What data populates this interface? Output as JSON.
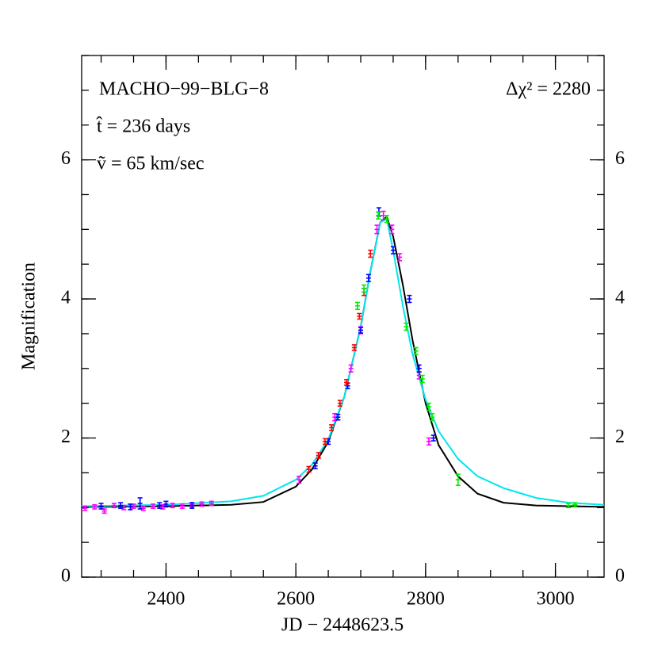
{
  "chart_data": {
    "type": "lightcurve",
    "xlabel": "JD − 2448623.5",
    "ylabel": "Magnification",
    "annotations": [
      "MACHO−99−BLG−8",
      "Δχ² = 2280",
      "t̂ = 236 days",
      "ṽ = 65 km/sec"
    ],
    "xlim": [
      2270,
      3075
    ],
    "ylim": [
      0,
      7.5
    ],
    "xticks": [
      2400,
      2600,
      2800,
      3000
    ],
    "yticks": [
      0,
      2,
      4,
      6
    ],
    "curves": [
      {
        "color": "#000000",
        "x": [
          2270,
          2400,
          2500,
          2550,
          2600,
          2625,
          2650,
          2675,
          2700,
          2715,
          2730,
          2740,
          2750,
          2765,
          2780,
          2800,
          2820,
          2850,
          2880,
          2920,
          2970,
          3075
        ],
        "values": [
          1.01,
          1.02,
          1.04,
          1.08,
          1.3,
          1.55,
          1.95,
          2.6,
          3.6,
          4.4,
          5.1,
          5.18,
          4.9,
          4.2,
          3.4,
          2.5,
          1.9,
          1.45,
          1.2,
          1.07,
          1.03,
          1.01
        ]
      },
      {
        "color": "#00e5ee",
        "x": [
          2270,
          2400,
          2500,
          2550,
          2600,
          2625,
          2650,
          2675,
          2700,
          2715,
          2730,
          2740,
          2750,
          2765,
          2780,
          2800,
          2820,
          2850,
          2880,
          2920,
          2970,
          3020,
          3075
        ],
        "values": [
          1.02,
          1.04,
          1.09,
          1.17,
          1.4,
          1.62,
          1.98,
          2.6,
          3.6,
          4.4,
          5.1,
          5.15,
          4.7,
          3.9,
          3.2,
          2.55,
          2.1,
          1.7,
          1.45,
          1.28,
          1.14,
          1.07,
          1.04
        ]
      }
    ],
    "series": [
      {
        "color": "#ff00ff",
        "x": [
          2275,
          2290,
          2305,
          2320,
          2335,
          2350,
          2365,
          2380,
          2395,
          2410,
          2425,
          2440,
          2455,
          2470,
          2605,
          2660,
          2685,
          2700,
          2725,
          2735,
          2748,
          2760,
          2790,
          2805
        ],
        "values": [
          0.99,
          1.01,
          0.95,
          1.03,
          1.0,
          1.02,
          0.99,
          1.02,
          1.01,
          1.03,
          1.02,
          1.04,
          1.05,
          1.06,
          1.4,
          2.3,
          3.0,
          3.55,
          5.0,
          5.2,
          5.0,
          4.6,
          2.9,
          1.95
        ],
        "errors": [
          0.03,
          0.03,
          0.03,
          0.03,
          0.03,
          0.03,
          0.03,
          0.03,
          0.03,
          0.03,
          0.03,
          0.03,
          0.03,
          0.03,
          0.05,
          0.05,
          0.05,
          0.05,
          0.06,
          0.06,
          0.06,
          0.05,
          0.05,
          0.05
        ]
      },
      {
        "color": "#0000ff",
        "x": [
          2300,
          2330,
          2345,
          2360,
          2390,
          2400,
          2440,
          2630,
          2650,
          2665,
          2680,
          2700,
          2712,
          2728,
          2750,
          2775,
          2790,
          2812
        ],
        "values": [
          1.02,
          1.03,
          1.01,
          1.06,
          1.03,
          1.05,
          1.03,
          1.6,
          1.95,
          2.3,
          2.75,
          3.55,
          4.3,
          5.25,
          4.7,
          4.0,
          3.0,
          2.0
        ],
        "errors": [
          0.04,
          0.04,
          0.04,
          0.08,
          0.04,
          0.04,
          0.04,
          0.04,
          0.04,
          0.04,
          0.04,
          0.04,
          0.05,
          0.06,
          0.05,
          0.05,
          0.05,
          0.04
        ]
      },
      {
        "color": "#ff0000",
        "x": [
          2620,
          2635,
          2645,
          2655,
          2668,
          2678,
          2690,
          2698,
          2705,
          2715
        ],
        "values": [
          1.55,
          1.75,
          1.95,
          2.15,
          2.5,
          2.8,
          3.3,
          3.75,
          4.1,
          4.65
        ],
        "errors": [
          0.04,
          0.04,
          0.04,
          0.04,
          0.04,
          0.04,
          0.04,
          0.04,
          0.05,
          0.05
        ]
      },
      {
        "color": "#00ee00",
        "x": [
          2695,
          2705,
          2727,
          2740,
          2770,
          2785,
          2795,
          2805,
          2810,
          2850,
          3020,
          3030
        ],
        "values": [
          3.9,
          4.15,
          5.2,
          5.15,
          3.6,
          3.25,
          2.85,
          2.45,
          2.3,
          1.4,
          1.03,
          1.04
        ],
        "errors": [
          0.05,
          0.05,
          0.05,
          0.05,
          0.05,
          0.05,
          0.05,
          0.05,
          0.05,
          0.08,
          0.03,
          0.03
        ]
      }
    ]
  }
}
